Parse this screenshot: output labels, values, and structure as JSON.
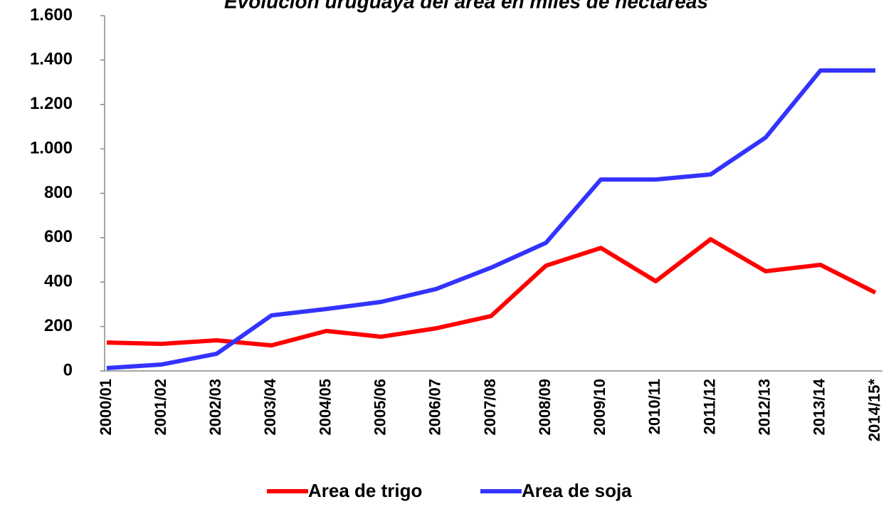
{
  "chart_data": {
    "type": "line",
    "title": "Evolución uruguaya del área en miles de hectáreas",
    "categories": [
      "2000/01",
      "2001/02",
      "2002/03",
      "2003/04",
      "2004/05",
      "2005/06",
      "2006/07",
      "2007/08",
      "2008/09",
      "2009/10",
      "2010/11",
      "2011/12",
      "2012/13",
      "2013/14",
      "2014/15*"
    ],
    "series": [
      {
        "name": "Area de trigo",
        "color": "#ff0000",
        "values": [
          128,
          122,
          138,
          115,
          180,
          154,
          192,
          247,
          474,
          554,
          404,
          593,
          449,
          478,
          353
        ]
      },
      {
        "name": "Area de soja",
        "color": "#3333ff",
        "values": [
          13,
          29,
          77,
          250,
          279,
          311,
          369,
          465,
          577,
          862,
          862,
          885,
          1051,
          1353,
          1353
        ]
      }
    ],
    "ylim": [
      0,
      1600
    ],
    "yticks": [
      0,
      200,
      400,
      600,
      800,
      {
        "value": 1000,
        "label": "1.000"
      },
      {
        "value": 1200,
        "label": "1.200"
      },
      {
        "value": 1400,
        "label": "1.400"
      },
      {
        "value": 1600,
        "label": "1.600"
      }
    ],
    "legend": "bottom"
  }
}
